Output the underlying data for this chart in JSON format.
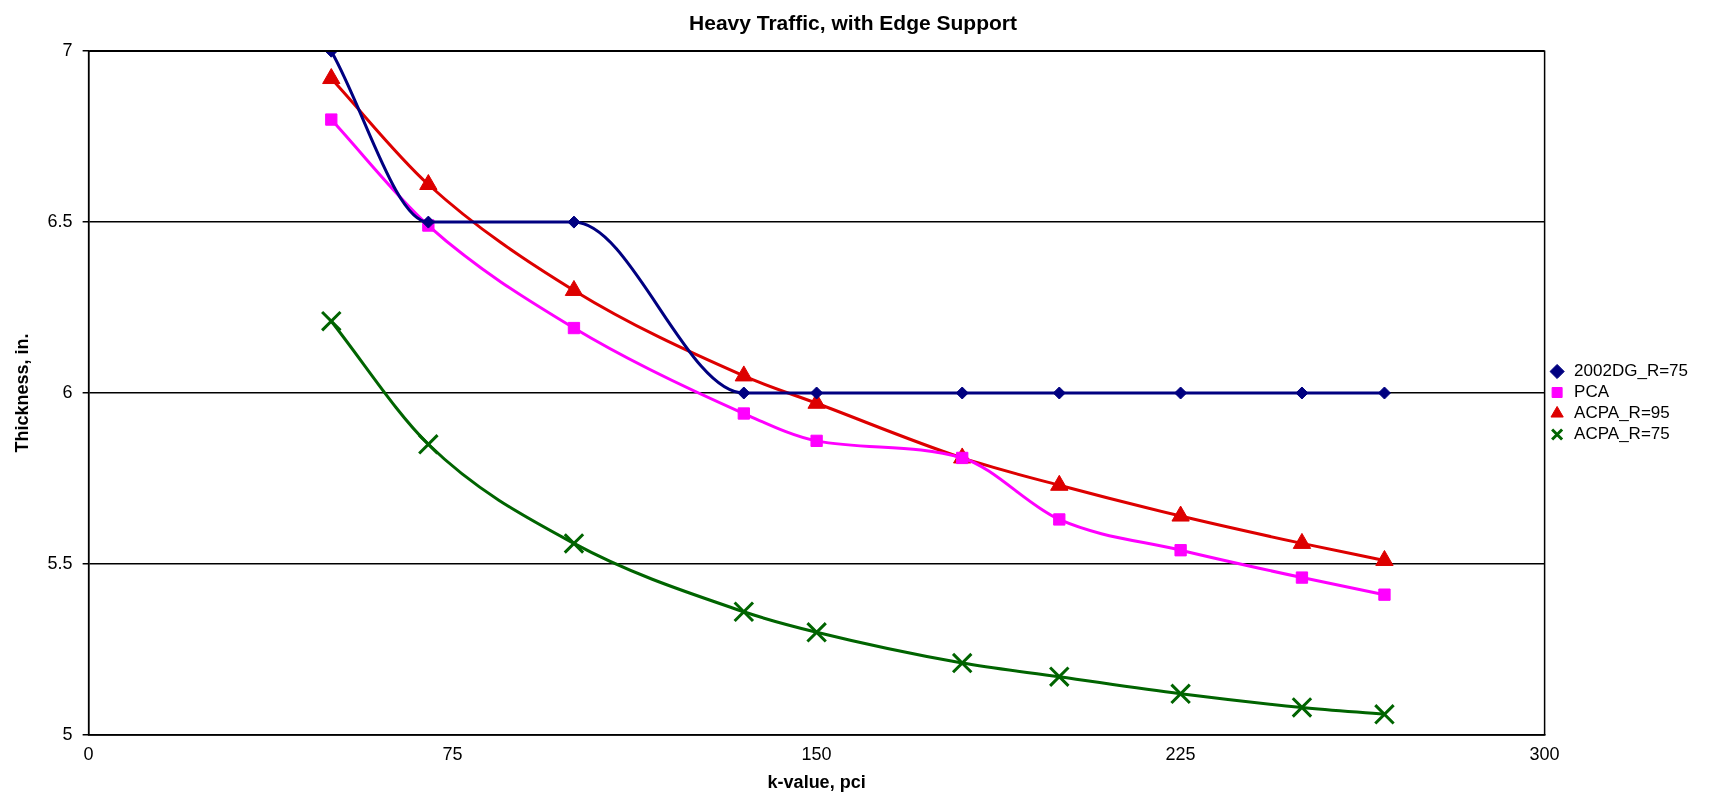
{
  "chart_data": {
    "type": "line",
    "title": "Heavy Traffic, with Edge Support",
    "xlabel": "k-value, pci",
    "ylabel": "Thickness, in.",
    "x": [
      50,
      70,
      100,
      135,
      150,
      180,
      200,
      225,
      250,
      267
    ],
    "series": [
      {
        "name": "2002DG_R=75",
        "color": "#000080",
        "marker": "diamond",
        "values": [
          7,
          6.5,
          6.5,
          6,
          6,
          6,
          6,
          6,
          6,
          6
        ]
      },
      {
        "name": "PCA",
        "color": "#ff00ff",
        "marker": "square",
        "values": [
          6.8,
          6.49,
          6.19,
          5.94,
          5.86,
          5.81,
          5.63,
          5.54,
          5.46,
          5.41
        ]
      },
      {
        "name": "ACPA_R=95",
        "color": "#dd0000",
        "marker": "triangle",
        "values": [
          6.92,
          6.61,
          6.3,
          6.05,
          5.97,
          5.81,
          5.73,
          5.64,
          5.56,
          5.51
        ]
      },
      {
        "name": "ACPA_R=75",
        "color": "#006400",
        "marker": "cross",
        "values": [
          6.21,
          5.85,
          5.56,
          5.36,
          5.3,
          5.21,
          5.17,
          5.12,
          5.08,
          5.06
        ]
      }
    ],
    "xlim": [
      0,
      300
    ],
    "xticks": [
      0,
      75,
      150,
      225,
      300
    ],
    "ylim": [
      5,
      7
    ],
    "yticks": [
      5,
      5.5,
      6,
      6.5,
      7
    ],
    "grid": "y",
    "legend": "right"
  }
}
